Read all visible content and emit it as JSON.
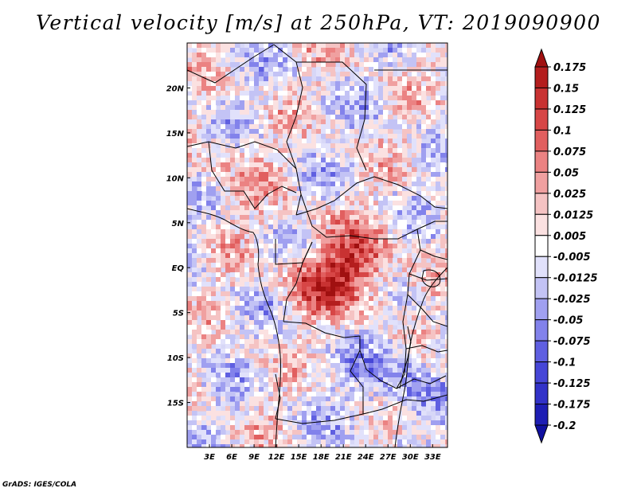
{
  "title": "Vertical velocity [m/s] at 250hPa, VT: 2019090900",
  "credit": "GrADS: IGES/COLA",
  "map": {
    "lon_range": [
      0,
      35
    ],
    "lat_range": [
      -20,
      25
    ],
    "x_ticks": [
      {
        "lon": 3,
        "label": "3E"
      },
      {
        "lon": 6,
        "label": "6E"
      },
      {
        "lon": 9,
        "label": "9E"
      },
      {
        "lon": 12,
        "label": "12E"
      },
      {
        "lon": 15,
        "label": "15E"
      },
      {
        "lon": 18,
        "label": "18E"
      },
      {
        "lon": 21,
        "label": "21E"
      },
      {
        "lon": 24,
        "label": "24E"
      },
      {
        "lon": 27,
        "label": "27E"
      },
      {
        "lon": 30,
        "label": "30E"
      },
      {
        "lon": 33,
        "label": "33E"
      }
    ],
    "y_ticks": [
      {
        "lat": 20,
        "label": "20N"
      },
      {
        "lat": 15,
        "label": "15N"
      },
      {
        "lat": 10,
        "label": "10N"
      },
      {
        "lat": 5,
        "label": "5N"
      },
      {
        "lat": 0,
        "label": "EQ"
      },
      {
        "lat": -5,
        "label": "5S"
      },
      {
        "lat": -10,
        "label": "10S"
      },
      {
        "lat": -15,
        "label": "15S"
      }
    ]
  },
  "colorbar": {
    "labels": [
      "0.175",
      "0.15",
      "0.125",
      "0.1",
      "0.075",
      "0.05",
      "0.025",
      "0.0125",
      "0.005",
      "-0.005",
      "-0.0125",
      "-0.025",
      "-0.05",
      "-0.075",
      "-0.1",
      "-0.125",
      "-0.175",
      "-0.2"
    ],
    "colors_top_to_bottom": [
      "#a01010",
      "#b41e1e",
      "#c83232",
      "#d74646",
      "#e15f5f",
      "#eb8282",
      "#f0a0a0",
      "#f5c3c3",
      "#fbe1e1",
      "#ffffff",
      "#e1e1fb",
      "#c3c3f5",
      "#a0a0f0",
      "#8282eb",
      "#5f5fe1",
      "#4646d7",
      "#3232c8",
      "#1e1eb4",
      "#1010a0"
    ]
  },
  "chart_data": {
    "type": "heatmap",
    "title": "Vertical velocity [m/s] at 250hPa, VT: 2019090900",
    "variable": "Vertical velocity",
    "units": "m/s",
    "level": "250hPa",
    "valid_time": "2019090900",
    "x_axis": "longitude",
    "y_axis": "latitude",
    "xlim": [
      0,
      35
    ],
    "ylim": [
      -20,
      25
    ],
    "contour_levels": [
      -0.2,
      -0.175,
      -0.125,
      -0.1,
      -0.075,
      -0.05,
      -0.025,
      -0.0125,
      -0.005,
      0.005,
      0.0125,
      0.025,
      0.05,
      0.075,
      0.1,
      0.125,
      0.15,
      0.175
    ]
  }
}
